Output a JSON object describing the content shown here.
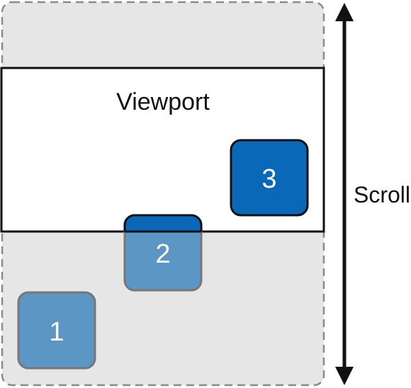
{
  "diagram": {
    "viewport_label": "Viewport",
    "scroll_label": "Scroll",
    "boxes": [
      {
        "label": "1",
        "state": "outside viewport",
        "color": "#5b96c4"
      },
      {
        "label": "2",
        "state": "partially inside viewport",
        "color": "#5b96c4",
        "overlap_color": "#0a68b8"
      },
      {
        "label": "3",
        "state": "inside viewport",
        "color": "#0a68b8"
      }
    ],
    "colors": {
      "scroll_area": "#e6e6e6",
      "scroll_area_border": "#8a8a8a",
      "viewport": "#ffffff",
      "outline": "#111111"
    }
  }
}
